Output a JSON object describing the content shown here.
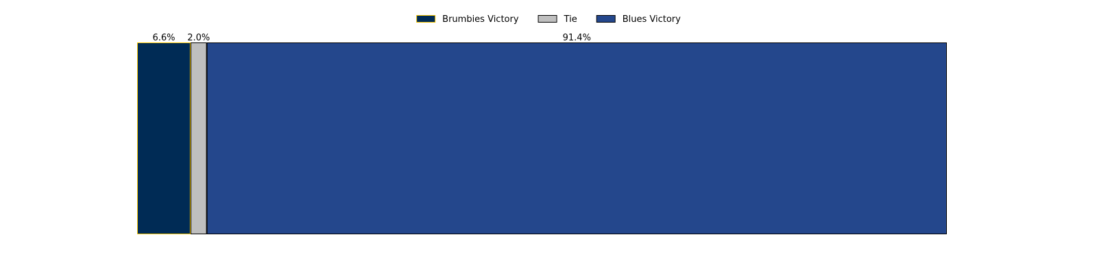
{
  "chart_data": {
    "type": "bar",
    "orientation": "horizontal",
    "stacked": true,
    "normalized": true,
    "unit": "%",
    "categories": [
      ""
    ],
    "series": [
      {
        "name": "Brumbies Victory",
        "values": [
          6.6
        ],
        "label": "6.6%",
        "color": "#002B55",
        "edge_color": "#F2C200"
      },
      {
        "name": "Tie",
        "values": [
          2.0
        ],
        "label": "2.0%",
        "color": "#BFBFBF",
        "edge_color": "#000000"
      },
      {
        "name": "Blues Victory",
        "values": [
          91.4
        ],
        "label": "91.4%",
        "color": "#24478C",
        "edge_color": "#000000"
      }
    ],
    "xlim": [
      0,
      100
    ],
    "axes_visible": false,
    "grid": false,
    "legend_position": "top-center",
    "legend_columns": 3
  }
}
